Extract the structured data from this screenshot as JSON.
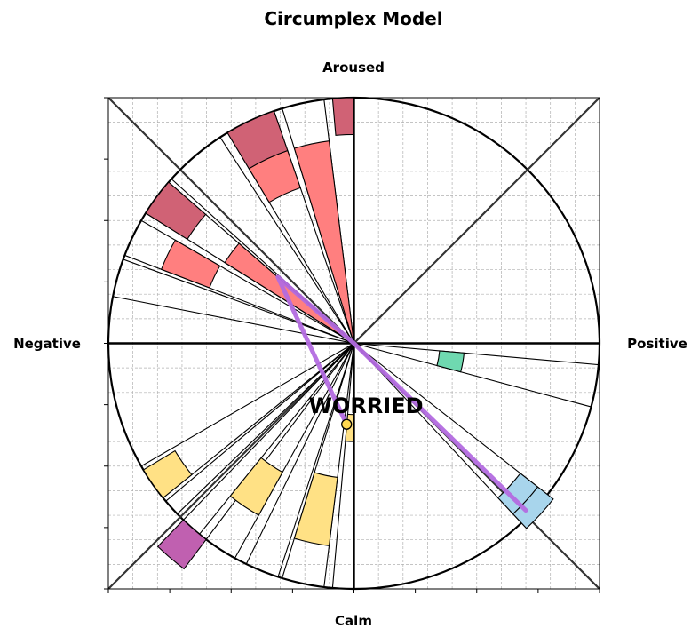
{
  "chart_data": {
    "type": "polar-bar",
    "title": "Circumplex Model",
    "axis_labels": {
      "top": "Aroused",
      "bottom": "Calm",
      "left": "Negative",
      "right": "Positive"
    },
    "grid": true,
    "xlim": [
      -1,
      1
    ],
    "ylim": [
      -1,
      1
    ],
    "state_label": "WORRIED",
    "colors": {
      "red": "#ff7f7f",
      "darkred": "#d06275",
      "yellow": "#ffe185",
      "green": "#6fd9b0",
      "blue": "#a8d5ec",
      "purple": "#c060b0",
      "trajectory": "#b36be0",
      "marker": "#ffd850"
    },
    "wedges": [
      {
        "angle_start": 90,
        "angle_end": 95,
        "r_inner": 0.85,
        "r_outer": 1.0,
        "color": "darkred"
      },
      {
        "angle_start": 97,
        "angle_end": 107,
        "r_inner": 0.0,
        "r_outer": 0.83,
        "color": "red"
      },
      {
        "angle_start": 109,
        "angle_end": 121,
        "r_inner": 0.67,
        "r_outer": 0.83,
        "color": "red"
      },
      {
        "angle_start": 109,
        "angle_end": 121,
        "r_inner": 0.83,
        "r_outer": 1.0,
        "color": "darkred"
      },
      {
        "angle_start": 139,
        "angle_end": 148,
        "r_inner": 0.0,
        "r_outer": 0.62,
        "color": "red"
      },
      {
        "angle_start": 139,
        "angle_end": 148,
        "r_inner": 0.8,
        "r_outer": 1.0,
        "color": "darkred"
      },
      {
        "angle_start": 150,
        "angle_end": 159,
        "r_inner": 0.63,
        "r_outer": 0.84,
        "color": "red"
      },
      {
        "angle_start": 345,
        "angle_end": 355,
        "r_inner": 0.35,
        "r_outer": 0.45,
        "color": "green"
      },
      {
        "angle_start": 265,
        "angle_end": 270,
        "r_inner": 0.29,
        "r_outer": 0.4,
        "color": "yellow"
      },
      {
        "angle_start": 253,
        "angle_end": 263,
        "r_inner": 0.55,
        "r_outer": 0.83,
        "color": "yellow"
      },
      {
        "angle_start": 231,
        "angle_end": 241,
        "r_inner": 0.6,
        "r_outer": 0.8,
        "color": "yellow"
      },
      {
        "angle_start": 211,
        "angle_end": 219,
        "r_inner": 0.85,
        "r_outer": 1.0,
        "color": "yellow"
      },
      {
        "angle_start": 226,
        "angle_end": 233,
        "r_inner": 1.0,
        "r_outer": 1.15,
        "color": "purple"
      },
      {
        "angle_start": 313,
        "angle_end": 322,
        "r_inner": 0.86,
        "r_outer": 0.95,
        "color": "blue"
      },
      {
        "angle_start": 313,
        "angle_end": 322,
        "r_inner": 0.95,
        "r_outer": 1.03,
        "color": "blue"
      }
    ],
    "outline_wedges": [
      {
        "angle_start": 97,
        "angle_end": 107
      },
      {
        "angle_start": 109,
        "angle_end": 121
      },
      {
        "angle_start": 123,
        "angle_end": 138
      },
      {
        "angle_start": 139,
        "angle_end": 148
      },
      {
        "angle_start": 150,
        "angle_end": 159
      },
      {
        "angle_start": 160,
        "angle_end": 169
      },
      {
        "angle_start": 345,
        "angle_end": 355
      },
      {
        "angle_start": 265,
        "angle_end": 270
      },
      {
        "angle_start": 253,
        "angle_end": 263
      },
      {
        "angle_start": 231,
        "angle_end": 241
      },
      {
        "angle_start": 210,
        "angle_end": 219
      },
      {
        "angle_start": 220,
        "angle_end": 224
      },
      {
        "angle_start": 226,
        "angle_end": 233
      },
      {
        "angle_start": 244,
        "angle_end": 252
      },
      {
        "angle_start": 313,
        "angle_end": 322
      }
    ],
    "trajectory": [
      {
        "x": 0.7,
        "y": -0.68
      },
      {
        "x": 0.0,
        "y": 0.0
      },
      {
        "x": -0.31,
        "y": 0.27
      },
      {
        "x": -0.03,
        "y": -0.33
      }
    ],
    "marker": {
      "x": -0.03,
      "y": -0.33
    }
  }
}
